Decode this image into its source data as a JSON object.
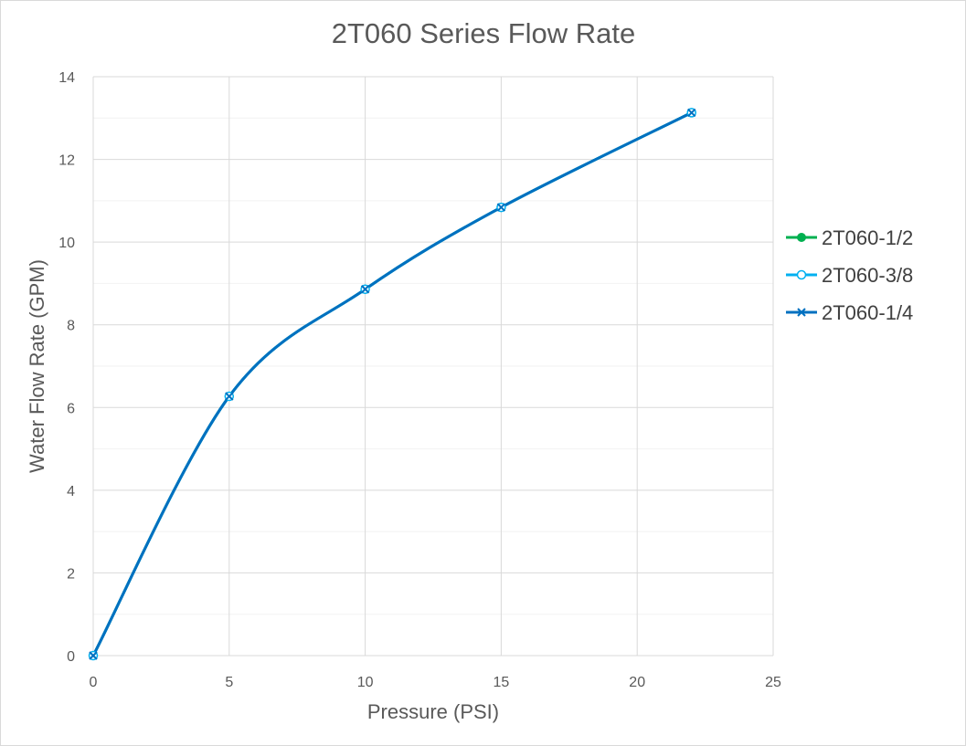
{
  "chart_data": {
    "type": "line",
    "title": "2T060 Series Flow Rate",
    "xlabel": "Pressure (PSI)",
    "ylabel": "Water Flow Rate (GPM)",
    "xlim": [
      0,
      25
    ],
    "ylim": [
      0,
      14
    ],
    "xticks": [
      "0",
      "5",
      "10",
      "15",
      "20",
      "25"
    ],
    "yticks": [
      "0",
      "2",
      "4",
      "6",
      "8",
      "10",
      "12",
      "14"
    ],
    "x_tick_values": [
      0,
      5,
      10,
      15,
      20,
      25
    ],
    "y_tick_values": [
      0,
      2,
      4,
      6,
      8,
      10,
      12,
      14
    ],
    "grid": {
      "major": true,
      "minor_horizontal": true,
      "vertical": true
    },
    "smoothed": true,
    "legend_position": "right",
    "series": [
      {
        "name": "2T060-1/2",
        "color": "#00B050",
        "marker": "filled-circle",
        "x": [
          0,
          5,
          10,
          15,
          22
        ],
        "y": [
          0,
          6.27,
          8.86,
          10.84,
          13.13
        ]
      },
      {
        "name": "2T060-3/8",
        "color": "#00B0F0",
        "marker": "open-circle",
        "x": [
          0,
          5,
          10,
          15,
          22
        ],
        "y": [
          0,
          6.27,
          8.86,
          10.84,
          13.13
        ]
      },
      {
        "name": "2T060-1/4",
        "color": "#0070C0",
        "marker": "x",
        "x": [
          0,
          5,
          10,
          15,
          22
        ],
        "y": [
          0,
          6.27,
          8.86,
          10.84,
          13.13
        ]
      }
    ]
  }
}
